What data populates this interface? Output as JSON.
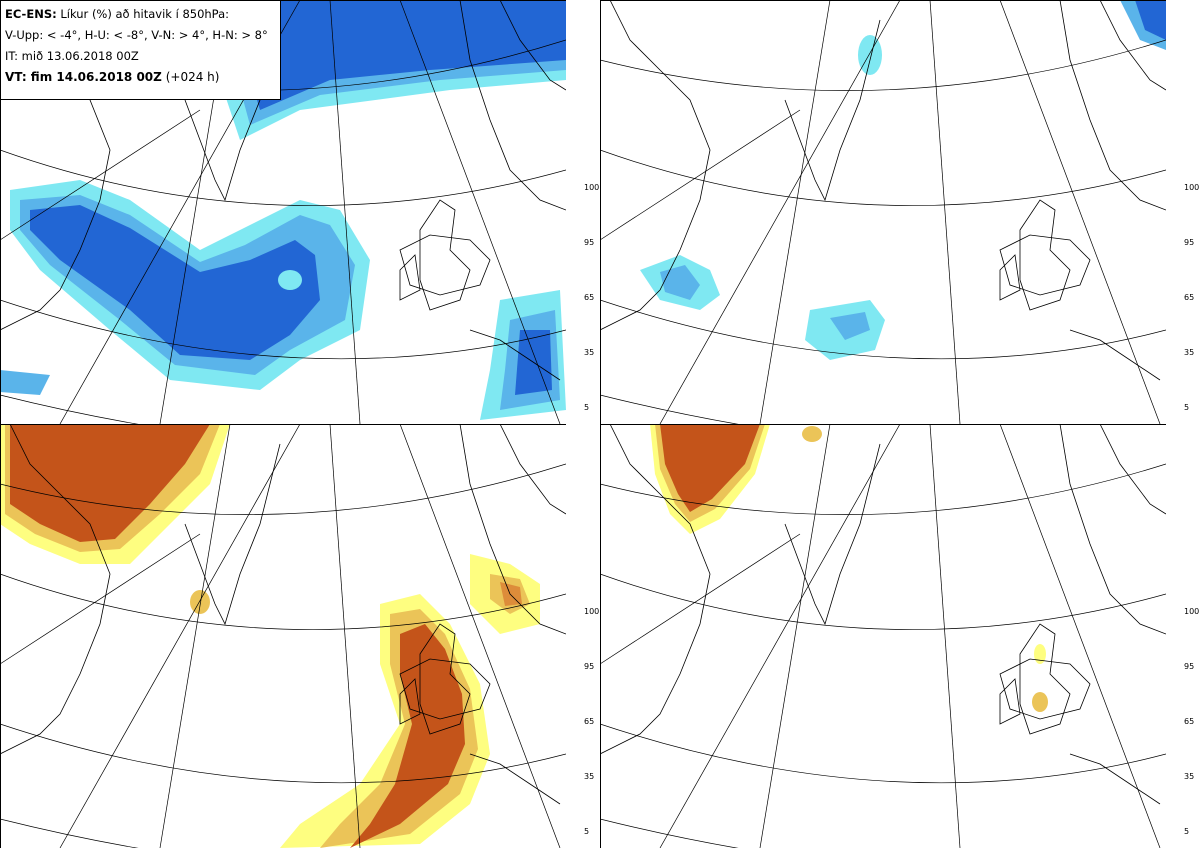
{
  "header": {
    "model": "EC-ENS:",
    "title": "Líkur (%) að hitavik í 850hPa:",
    "thresholds": "V-Upp: < -4°, H-U: < -8°, V-N: > 4°, H-N: > 8°",
    "initial_time": "IT: mið 13.06.2018 00Z",
    "valid_label": "VT: fim 14.06.2018 00Z",
    "lead": "(+024 h)"
  },
  "colorbar_cold": {
    "ticks": [
      "100",
      "95",
      "65",
      "35",
      "5"
    ],
    "colors": [
      "#2266d4",
      "#3e8ee0",
      "#5ab4ea",
      "#7fe8f2"
    ]
  },
  "colorbar_warm": {
    "ticks": [
      "100",
      "95",
      "65",
      "35",
      "5"
    ],
    "colors": [
      "#c4541a",
      "#dd8c3a",
      "#ebc458",
      "#fefe80"
    ]
  },
  "panels": [
    {
      "id": "V-Upp",
      "type": "cold"
    },
    {
      "id": "H-U",
      "type": "cold"
    },
    {
      "id": "V-N",
      "type": "warm"
    },
    {
      "id": "H-N",
      "type": "warm"
    }
  ]
}
